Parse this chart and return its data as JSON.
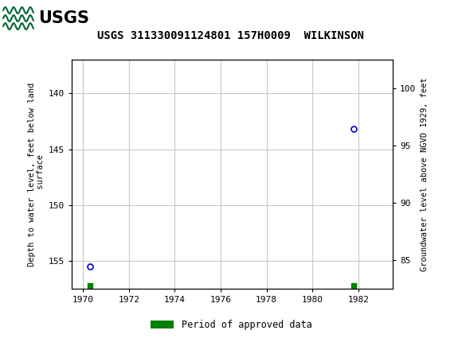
{
  "title": "USGS 311330091124801 157H0009  WILKINSON",
  "header_color": "#006633",
  "plot_data": [
    {
      "year": 1970.3,
      "depth": 155.5
    },
    {
      "year": 1981.8,
      "depth": 143.2
    }
  ],
  "approved_squares": [
    {
      "year": 1970.3
    },
    {
      "year": 1981.8
    }
  ],
  "approved_square_depth": 157.2,
  "xlim": [
    1969.5,
    1983.5
  ],
  "xticks": [
    1970,
    1972,
    1974,
    1976,
    1978,
    1980,
    1982
  ],
  "ylim_left_bottom": 157.5,
  "ylim_left_top": 137.0,
  "ylim_right_bottom": 82.5,
  "ylim_right_top": 102.5,
  "yticks_left": [
    140,
    145,
    150,
    155
  ],
  "yticks_right": [
    85,
    90,
    95,
    100
  ],
  "ylabel_left": "Depth to water level, feet below land\n surface",
  "ylabel_right": "Groundwater level above NGVD 1929, feet",
  "legend_label": "Period of approved data",
  "legend_color": "#008000",
  "point_color": "#0000CC",
  "plot_bg": "#ffffff",
  "grid_color": "#c8c8c8",
  "fig_bg": "#ffffff"
}
